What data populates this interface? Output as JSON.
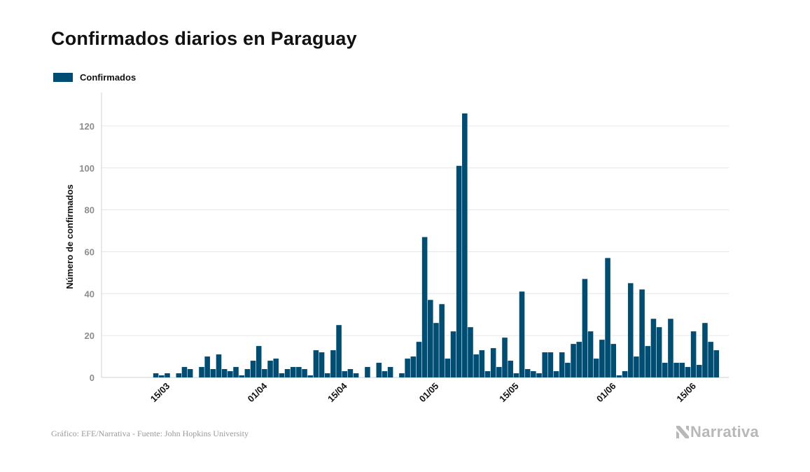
{
  "title": "Confirmados diarios en Paraguay",
  "footer": "Gráfico: EFE/Narrativa - Fuente: John Hopkins University",
  "brand": {
    "text": "Narrativa",
    "icon": "narrativa-logo-icon",
    "color": "#b8b8b8"
  },
  "colors": {
    "bar": "#004d74",
    "grid": "#e6e6e6",
    "tick": "#8c8c8c"
  },
  "chart_data": {
    "type": "bar",
    "title": "Confirmados diarios en Paraguay",
    "xlabel": "",
    "ylabel": "Número de confirmados",
    "ylim": [
      0,
      130
    ],
    "yticks": [
      0,
      20,
      40,
      60,
      80,
      100,
      120
    ],
    "grid": true,
    "legend": "top-left",
    "x_start": "2020-03-08",
    "x_ticks": [
      {
        "label": "15/03",
        "date": "2020-03-15"
      },
      {
        "label": "01/04",
        "date": "2020-04-01"
      },
      {
        "label": "15/04",
        "date": "2020-04-15"
      },
      {
        "label": "01/05",
        "date": "2020-05-01"
      },
      {
        "label": "15/05",
        "date": "2020-05-15"
      },
      {
        "label": "01/06",
        "date": "2020-06-01"
      },
      {
        "label": "15/06",
        "date": "2020-06-15"
      }
    ],
    "series": [
      {
        "name": "Confirmados",
        "color": "#004d74",
        "values": [
          0,
          0,
          0,
          0,
          0,
          2,
          1,
          2,
          0,
          2,
          5,
          4,
          0,
          5,
          10,
          4,
          11,
          4,
          3,
          5,
          1,
          4,
          8,
          15,
          4,
          8,
          9,
          2,
          4,
          5,
          5,
          4,
          1,
          13,
          12,
          2,
          13,
          25,
          3,
          4,
          2,
          0,
          5,
          0,
          7,
          3,
          5,
          0,
          2,
          9,
          10,
          17,
          67,
          37,
          26,
          35,
          9,
          22,
          101,
          126,
          24,
          11,
          13,
          3,
          14,
          5,
          19,
          8,
          2,
          41,
          4,
          3,
          2,
          12,
          12,
          3,
          12,
          7,
          16,
          17,
          47,
          22,
          9,
          18,
          57,
          16,
          1,
          3,
          45,
          10,
          42,
          15,
          28,
          24,
          7,
          28,
          7,
          7,
          5,
          22,
          6,
          26,
          17,
          13
        ]
      }
    ]
  }
}
